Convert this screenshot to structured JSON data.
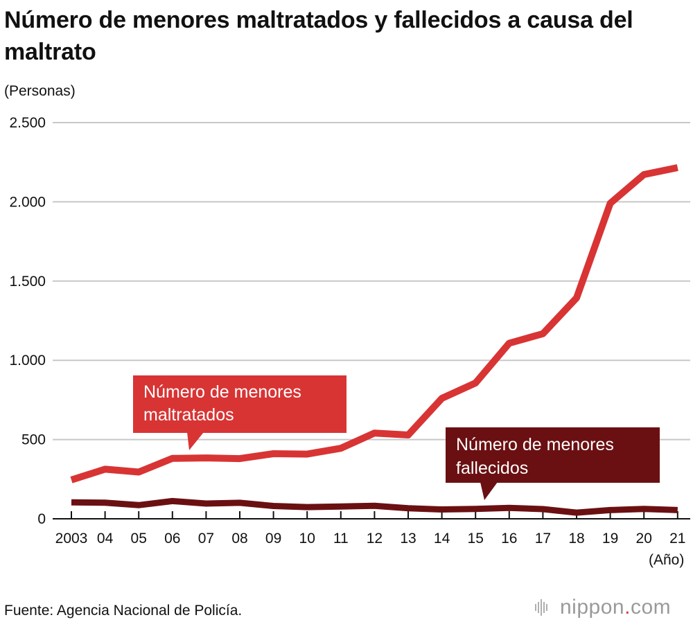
{
  "chart_data": {
    "type": "line",
    "title": "Número de menores maltratados y fallecidos a causa del maltrato",
    "ylabel": "(Personas)",
    "xlabel": "(Año)",
    "ylim": [
      0,
      2500
    ],
    "yticks": [
      0,
      500,
      1000,
      1500,
      2000,
      2500
    ],
    "ytick_labels": [
      "0",
      "500",
      "1.000",
      "1.500",
      "2.000",
      "2.500"
    ],
    "categories": [
      "2003",
      "04",
      "05",
      "06",
      "07",
      "08",
      "09",
      "10",
      "11",
      "12",
      "13",
      "14",
      "15",
      "16",
      "17",
      "18",
      "19",
      "20",
      "21"
    ],
    "grid": true,
    "series": [
      {
        "name": "Número de menores maltratados",
        "label_lines": [
          "Número de menores",
          "maltratados"
        ],
        "color": "#d83434",
        "values": [
          245,
          313,
          295,
          381,
          384,
          380,
          411,
          408,
          445,
          541,
          529,
          760,
          857,
          1108,
          1168,
          1394,
          1991,
          2172,
          2216
        ]
      },
      {
        "name": "Número de menores fallecidos",
        "label_lines": [
          "Número de menores",
          "fallecidos"
        ],
        "color": "#6b1012",
        "values": [
          104,
          102,
          86,
          112,
          96,
          101,
          81,
          74,
          78,
          82,
          67,
          59,
          62,
          69,
          61,
          39,
          55,
          62,
          55
        ]
      }
    ]
  },
  "footer": {
    "source": "Fuente: Agencia Nacional de Policía.",
    "brand_name": "nippon",
    "brand_dot": ".",
    "brand_suffix": "com"
  }
}
